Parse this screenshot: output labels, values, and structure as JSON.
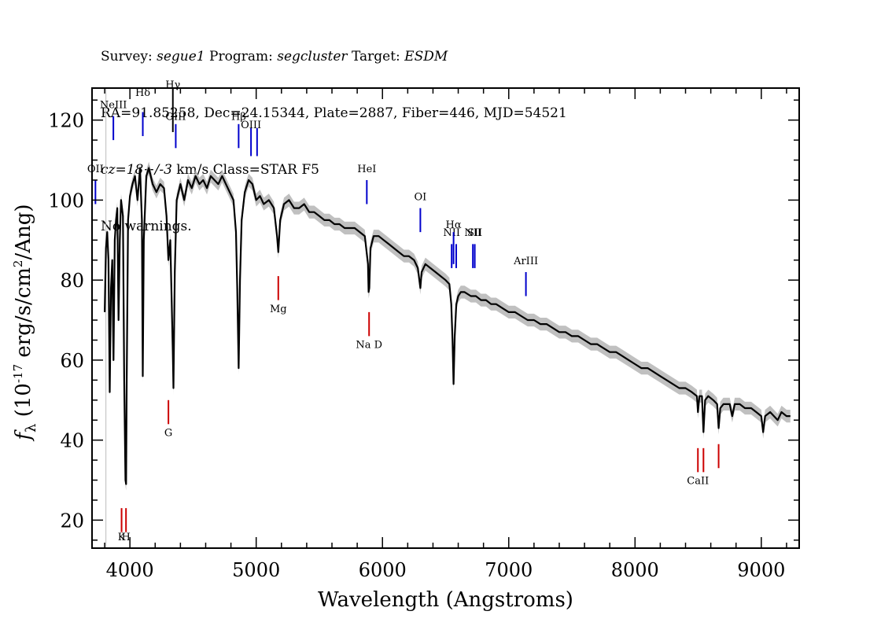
{
  "header": {
    "line1": {
      "survey_label": "Survey: ",
      "survey": "segue1",
      "program_label": " Program: ",
      "program": "segcluster",
      "target_label": " Target: ",
      "target": "ESDM"
    },
    "line2": "RA=91.85258, Dec=24.15344, Plate=2887, Fiber=446, MJD=54521",
    "line3": {
      "cz": "cz=18+/-3",
      "rest": " km/s Class=STAR F5"
    },
    "line4": "No warnings."
  },
  "chart_data": {
    "type": "line",
    "xlabel": "Wavelength (Angstroms)",
    "ylabel": "f_λ (10^-17 erg/s/cm^2/Ang)",
    "ylabel_parts": {
      "f": "f",
      "sub": "λ",
      "pre": " (10",
      "exp": "-17",
      "mid": " erg/s/cm",
      "exp2": "2",
      "post": "/Ang)"
    },
    "xlim": [
      3700,
      9300
    ],
    "ylim": [
      13,
      128
    ],
    "xticks": [
      4000,
      5000,
      6000,
      7000,
      8000,
      9000
    ],
    "yticks": [
      20,
      40,
      60,
      80,
      100,
      120
    ],
    "series": [
      {
        "color": "#000000",
        "points": [
          [
            3800,
            72
          ],
          [
            3810,
            88
          ],
          [
            3820,
            92
          ],
          [
            3830,
            85
          ],
          [
            3840,
            52
          ],
          [
            3850,
            78
          ],
          [
            3860,
            85
          ],
          [
            3870,
            60
          ],
          [
            3880,
            90
          ],
          [
            3890,
            95
          ],
          [
            3900,
            98
          ],
          [
            3910,
            70
          ],
          [
            3920,
            90
          ],
          [
            3930,
            100
          ],
          [
            3945,
            96
          ],
          [
            3955,
            55
          ],
          [
            3965,
            30
          ],
          [
            3970,
            29
          ],
          [
            3975,
            55
          ],
          [
            3985,
            95
          ],
          [
            4000,
            101
          ],
          [
            4020,
            104
          ],
          [
            4040,
            106
          ],
          [
            4060,
            100
          ],
          [
            4080,
            108
          ],
          [
            4095,
            95
          ],
          [
            4102,
            56
          ],
          [
            4110,
            90
          ],
          [
            4130,
            106
          ],
          [
            4150,
            108
          ],
          [
            4180,
            104
          ],
          [
            4210,
            102
          ],
          [
            4240,
            104
          ],
          [
            4270,
            103
          ],
          [
            4290,
            96
          ],
          [
            4305,
            85
          ],
          [
            4320,
            90
          ],
          [
            4340,
            62
          ],
          [
            4345,
            53
          ],
          [
            4355,
            82
          ],
          [
            4370,
            100
          ],
          [
            4400,
            104
          ],
          [
            4430,
            100
          ],
          [
            4460,
            105
          ],
          [
            4490,
            103
          ],
          [
            4520,
            106
          ],
          [
            4550,
            104
          ],
          [
            4580,
            105
          ],
          [
            4610,
            103
          ],
          [
            4640,
            106
          ],
          [
            4670,
            105
          ],
          [
            4700,
            104
          ],
          [
            4730,
            106
          ],
          [
            4760,
            104
          ],
          [
            4790,
            102
          ],
          [
            4820,
            100
          ],
          [
            4840,
            92
          ],
          [
            4850,
            78
          ],
          [
            4861,
            58
          ],
          [
            4872,
            80
          ],
          [
            4885,
            95
          ],
          [
            4910,
            102
          ],
          [
            4940,
            105
          ],
          [
            4970,
            104
          ],
          [
            5000,
            100
          ],
          [
            5030,
            101
          ],
          [
            5060,
            99
          ],
          [
            5100,
            100
          ],
          [
            5140,
            98
          ],
          [
            5165,
            91
          ],
          [
            5175,
            87
          ],
          [
            5190,
            95
          ],
          [
            5220,
            99
          ],
          [
            5260,
            100
          ],
          [
            5300,
            98
          ],
          [
            5340,
            98
          ],
          [
            5380,
            99
          ],
          [
            5420,
            97
          ],
          [
            5460,
            97
          ],
          [
            5500,
            96
          ],
          [
            5540,
            95
          ],
          [
            5580,
            95
          ],
          [
            5620,
            94
          ],
          [
            5660,
            94
          ],
          [
            5700,
            93
          ],
          [
            5740,
            93
          ],
          [
            5780,
            93
          ],
          [
            5820,
            92
          ],
          [
            5860,
            91
          ],
          [
            5885,
            84
          ],
          [
            5890,
            77
          ],
          [
            5896,
            78
          ],
          [
            5905,
            88
          ],
          [
            5930,
            91
          ],
          [
            5970,
            91
          ],
          [
            6010,
            90
          ],
          [
            6050,
            89
          ],
          [
            6090,
            88
          ],
          [
            6130,
            87
          ],
          [
            6170,
            86
          ],
          [
            6210,
            86
          ],
          [
            6250,
            85
          ],
          [
            6280,
            83
          ],
          [
            6300,
            78
          ],
          [
            6310,
            82
          ],
          [
            6340,
            84
          ],
          [
            6380,
            83
          ],
          [
            6420,
            82
          ],
          [
            6460,
            81
          ],
          [
            6500,
            80
          ],
          [
            6530,
            79
          ],
          [
            6545,
            74
          ],
          [
            6555,
            65
          ],
          [
            6563,
            54
          ],
          [
            6572,
            66
          ],
          [
            6585,
            74
          ],
          [
            6600,
            76
          ],
          [
            6620,
            77
          ],
          [
            6650,
            77
          ],
          [
            6700,
            76
          ],
          [
            6740,
            76
          ],
          [
            6780,
            75
          ],
          [
            6820,
            75
          ],
          [
            6860,
            74
          ],
          [
            6900,
            74
          ],
          [
            6950,
            73
          ],
          [
            7000,
            72
          ],
          [
            7050,
            72
          ],
          [
            7100,
            71
          ],
          [
            7150,
            70
          ],
          [
            7200,
            70
          ],
          [
            7250,
            69
          ],
          [
            7300,
            69
          ],
          [
            7350,
            68
          ],
          [
            7400,
            67
          ],
          [
            7450,
            67
          ],
          [
            7500,
            66
          ],
          [
            7550,
            66
          ],
          [
            7600,
            65
          ],
          [
            7650,
            64
          ],
          [
            7700,
            64
          ],
          [
            7750,
            63
          ],
          [
            7800,
            62
          ],
          [
            7850,
            62
          ],
          [
            7900,
            61
          ],
          [
            7950,
            60
          ],
          [
            8000,
            59
          ],
          [
            8050,
            58
          ],
          [
            8100,
            58
          ],
          [
            8150,
            57
          ],
          [
            8200,
            56
          ],
          [
            8250,
            55
          ],
          [
            8300,
            54
          ],
          [
            8350,
            53
          ],
          [
            8400,
            53
          ],
          [
            8450,
            52
          ],
          [
            8490,
            51
          ],
          [
            8498,
            47
          ],
          [
            8510,
            51
          ],
          [
            8530,
            51
          ],
          [
            8542,
            42
          ],
          [
            8555,
            50
          ],
          [
            8580,
            51
          ],
          [
            8620,
            50
          ],
          [
            8650,
            49
          ],
          [
            8662,
            43
          ],
          [
            8675,
            48
          ],
          [
            8700,
            49
          ],
          [
            8750,
            49
          ],
          [
            8770,
            46
          ],
          [
            8790,
            49
          ],
          [
            8830,
            49
          ],
          [
            8870,
            48
          ],
          [
            8920,
            48
          ],
          [
            8960,
            47
          ],
          [
            9000,
            46
          ],
          [
            9015,
            42
          ],
          [
            9030,
            46
          ],
          [
            9070,
            47
          ],
          [
            9100,
            46
          ],
          [
            9130,
            45
          ],
          [
            9160,
            47
          ],
          [
            9200,
            46
          ],
          [
            9230,
            46
          ]
        ]
      }
    ],
    "emission_lines": [
      {
        "label": "OII",
        "x": 3727,
        "y": [
          99,
          105
        ],
        "label_y": 107,
        "color": "#0000cc"
      },
      {
        "label": "NeIII",
        "x": 3869,
        "y": [
          115,
          121
        ],
        "label_y": 123,
        "color": "#0000cc"
      },
      {
        "label": "Hδ",
        "x": 4102,
        "y": [
          116,
          122
        ],
        "label_y": 126,
        "color": "#0000cc"
      },
      {
        "label": "Hγ",
        "x": 4340,
        "y": [
          117,
          128
        ],
        "label_y": 128,
        "color": "#000000"
      },
      {
        "label": "OIII",
        "x": 4363,
        "y": [
          113,
          119
        ],
        "label_y": 120,
        "color": "#0000cc"
      },
      {
        "label": "Hβ",
        "x": 4861,
        "y": [
          113,
          119
        ],
        "label_y": 120,
        "color": "#0000cc"
      },
      {
        "label": "OIII",
        "x": 4959,
        "y": [
          111,
          118
        ],
        "label_y": 118,
        "color": "#0000cc"
      },
      {
        "label": "",
        "x": 5007,
        "y": [
          111,
          118
        ],
        "label_y": 118,
        "color": "#0000cc"
      },
      {
        "label": "HeI",
        "x": 5876,
        "y": [
          99,
          105
        ],
        "label_y": 107,
        "color": "#0000cc"
      },
      {
        "label": "OI",
        "x": 6300,
        "y": [
          92,
          98
        ],
        "label_y": 100,
        "color": "#0000cc"
      },
      {
        "label": "NII",
        "x": 6548,
        "y": [
          83,
          89
        ],
        "label_y": 91,
        "color": "#0000cc"
      },
      {
        "label": "Hα",
        "x": 6563,
        "y": [
          84,
          92
        ],
        "label_y": 93,
        "color": "#0000cc"
      },
      {
        "label": "",
        "x": 6584,
        "y": [
          83,
          89
        ],
        "label_y": 91,
        "color": "#0000cc"
      },
      {
        "label": "NII",
        "x": 6716,
        "y": [
          83,
          89
        ],
        "label_y": 91,
        "color": "#0000cc"
      },
      {
        "label": "SII",
        "x": 6731,
        "y": [
          83,
          89
        ],
        "label_y": 91,
        "color": "#0000cc"
      },
      {
        "label": "ArIII",
        "x": 7136,
        "y": [
          76,
          82
        ],
        "label_y": 84,
        "color": "#0000cc"
      }
    ],
    "absorption_lines": [
      {
        "label": "K",
        "x": 3934,
        "y": [
          17,
          23
        ],
        "label_y": 15,
        "color": "#cc0000"
      },
      {
        "label": "H",
        "x": 3969,
        "y": [
          17,
          23
        ],
        "label_y": 15,
        "color": "#cc0000"
      },
      {
        "label": "G",
        "x": 4305,
        "y": [
          44,
          50
        ],
        "label_y": 41,
        "color": "#cc0000"
      },
      {
        "label": "Mg",
        "x": 5175,
        "y": [
          75,
          81
        ],
        "label_y": 72,
        "color": "#cc0000"
      },
      {
        "label": "Na D",
        "x": 5894,
        "y": [
          66,
          72
        ],
        "label_y": 63,
        "color": "#cc0000"
      },
      {
        "label": "CaII",
        "x": 8498,
        "y": [
          32,
          38
        ],
        "label_y": 29,
        "color": "#cc0000"
      },
      {
        "label": "",
        "x": 8542,
        "y": [
          32,
          38
        ],
        "label_y": 29,
        "color": "#cc0000"
      },
      {
        "label": "",
        "x": 8662,
        "y": [
          33,
          39
        ],
        "label_y": 29,
        "color": "#cc0000"
      }
    ],
    "grid": false,
    "colors": {
      "spectrum": "#000000",
      "error_band": "#b0b0b0",
      "emission": "#0000cc",
      "absorption": "#cc0000"
    }
  }
}
